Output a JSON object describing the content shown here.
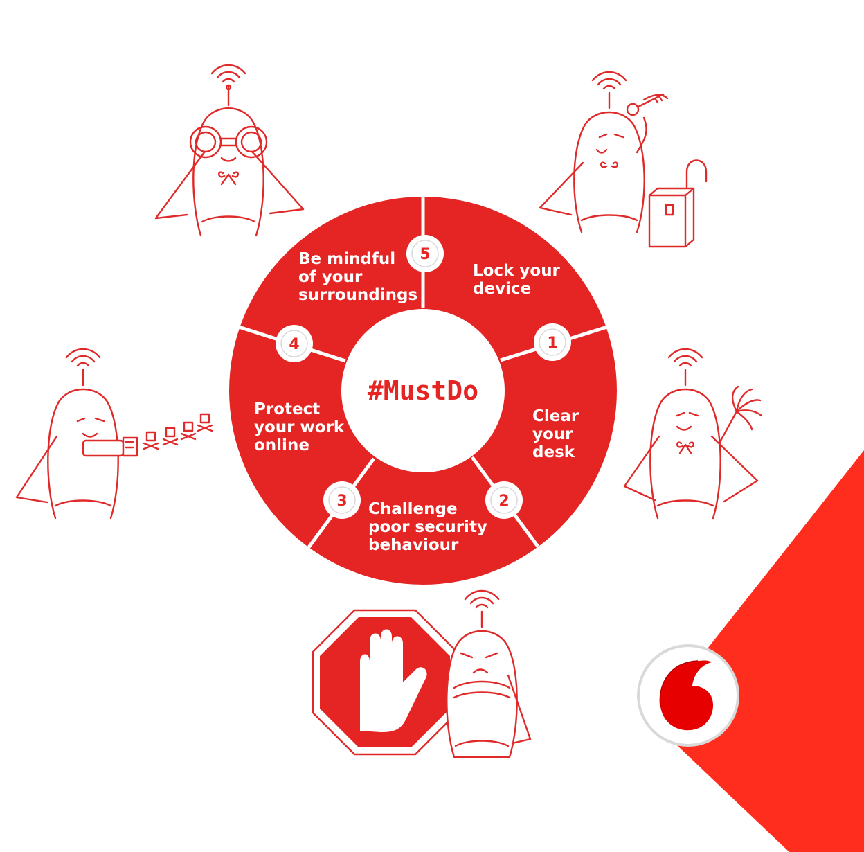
{
  "diagram": {
    "center_label": "#MustDo",
    "steps": [
      {
        "number": "1",
        "lines": [
          "Lock your",
          "device"
        ]
      },
      {
        "number": "2",
        "lines": [
          "Clear",
          "your",
          "desk"
        ]
      },
      {
        "number": "3",
        "lines": [
          "Challenge",
          "poor security",
          "behaviour"
        ]
      },
      {
        "number": "4",
        "lines": [
          "Protect",
          "your work",
          "online"
        ]
      },
      {
        "number": "5",
        "lines": [
          "Be mindful",
          "of your",
          "surroundings"
        ]
      }
    ]
  },
  "colors": {
    "ring": "#e42524",
    "line_art": "#e02a2a",
    "corner": "#ff2d1e",
    "badge_fill": "#ffffff"
  },
  "icons": {
    "binoculars_character": "superhero-with-binoculars-icon",
    "key_lock_character": "superhero-with-key-and-padlock-icon",
    "usb_character": "superhero-with-usb-blaster-icon",
    "duster_character": "superhero-with-feather-duster-icon",
    "stop_character": "superhero-with-stop-sign-icon",
    "brand": "vodafone-speechmark-logo-icon"
  }
}
